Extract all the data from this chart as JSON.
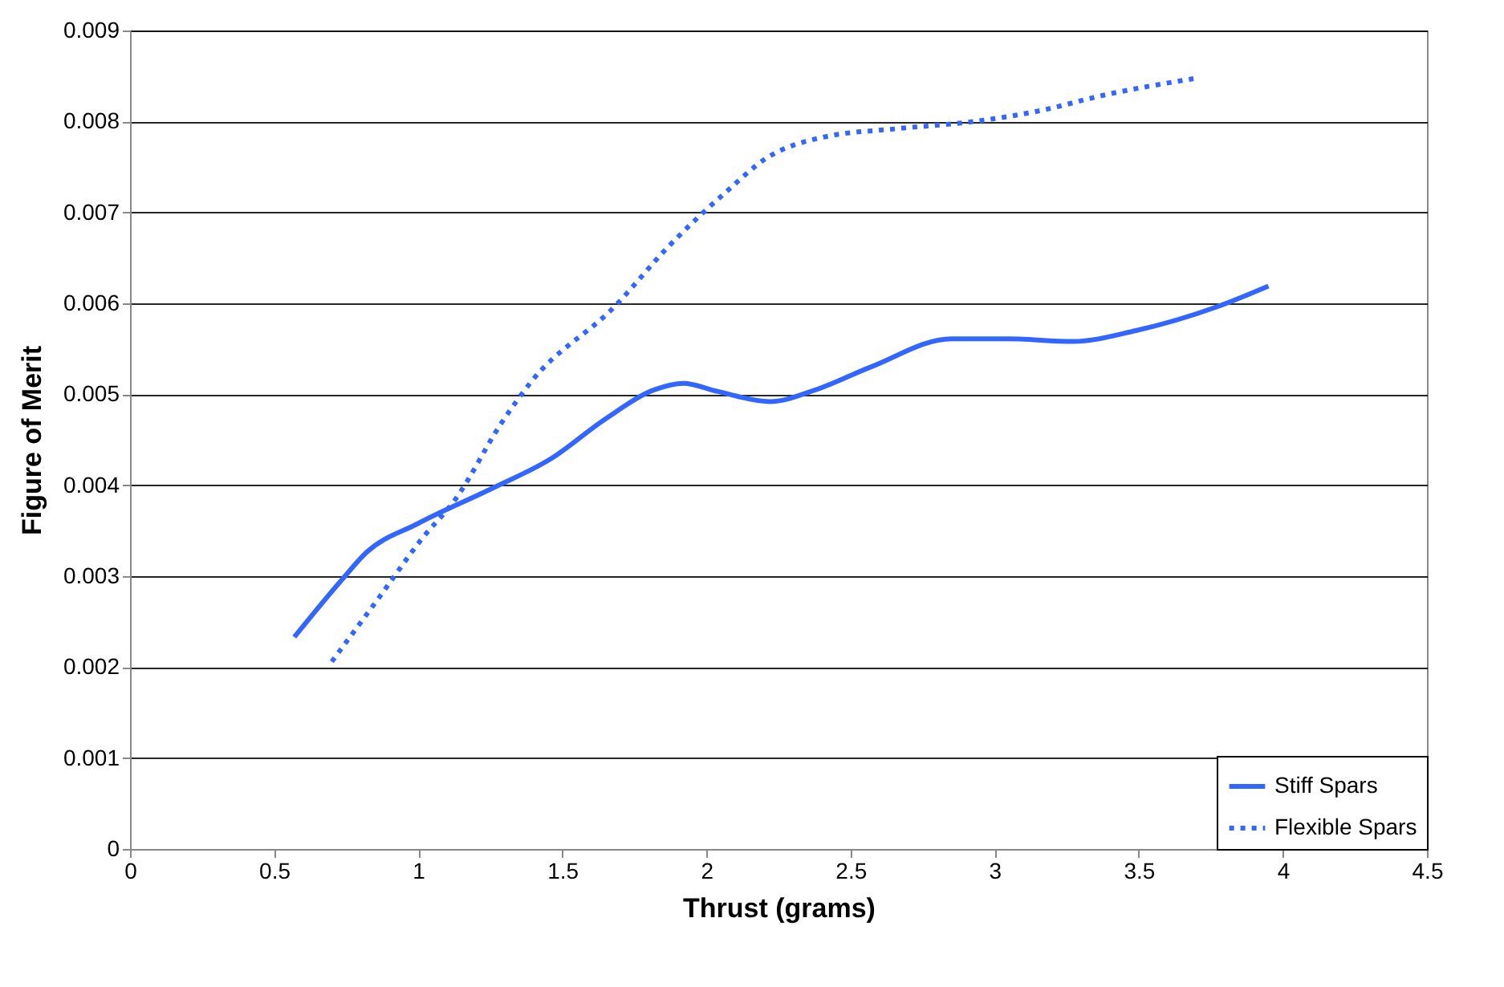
{
  "chart_data": {
    "type": "line",
    "xlabel": "Thrust (grams)",
    "ylabel": "Figure of Merit",
    "xlim": [
      0,
      4.5
    ],
    "xticks": [
      0,
      0.5,
      1,
      1.5,
      2,
      2.5,
      3,
      3.5,
      4,
      4.5
    ],
    "ylim": [
      0,
      0.009
    ],
    "yticks": [
      0,
      0.001,
      0.002,
      0.003,
      0.004,
      0.005,
      0.006,
      0.007,
      0.008,
      0.009
    ],
    "grid": "y",
    "legend": "bottom right",
    "marker": "none",
    "series": [
      {
        "name": "Stiff Spars",
        "color": "#3366ff",
        "line_style": "solid",
        "x": [
          0.57,
          0.735,
          0.82,
          1.0,
          1.26,
          1.46,
          1.65,
          1.82,
          1.92,
          2.04,
          2.22,
          2.38,
          2.57,
          2.85,
          3.05,
          3.27,
          3.49,
          3.77,
          3.95
        ],
        "values": [
          0.00233,
          0.00296,
          0.00326,
          0.00358,
          0.00397,
          0.00429,
          0.00473,
          0.00505,
          0.00512,
          0.00503,
          0.00492,
          0.00505,
          0.0053,
          0.00561,
          0.00561,
          0.00558,
          0.0057,
          0.00596,
          0.00619
        ]
      },
      {
        "name": "Flexible Spars",
        "color": "#3366ff",
        "line_style": "dotted",
        "x": [
          0.7,
          0.87,
          1.01,
          1.13,
          1.29,
          1.39,
          1.68,
          1.87,
          2.07,
          2.21,
          2.41,
          2.66,
          2.93,
          3.16,
          3.38,
          3.69
        ],
        "values": [
          0.00206,
          0.00279,
          0.0034,
          0.00385,
          0.00469,
          0.00513,
          0.00596,
          0.00663,
          0.00723,
          0.0076,
          0.00783,
          0.00792,
          0.008,
          0.00812,
          0.00829,
          0.00847
        ]
      }
    ]
  }
}
